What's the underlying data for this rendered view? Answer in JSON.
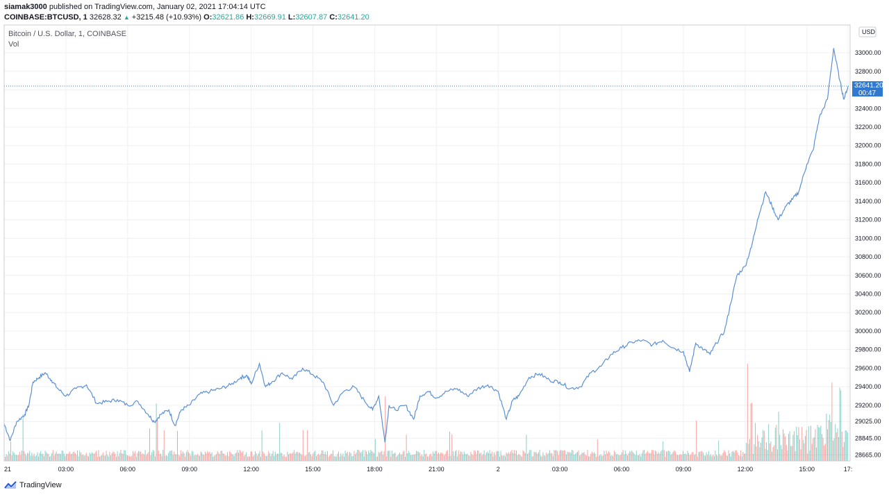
{
  "header": {
    "author": "siamak3000",
    "published": "published on TradingView.com, January 02, 2021 17:04:14 UTC",
    "symbol": "COINBASE:BTCUSD, 1",
    "last": "32628.32",
    "change": "+3215.48 (+10.93%)",
    "o_label": "O:",
    "o_value": "32621.86",
    "h_label": "H:",
    "h_value": "32669.91",
    "l_label": "L:",
    "l_value": "32607.87",
    "c_label": "C:",
    "c_value": "32641.20"
  },
  "legend": {
    "title": "Bitcoin / U.S. Dollar, 1, COINBASE",
    "volume": "Vol"
  },
  "price_axis": {
    "currency": "USD",
    "last_price_label": "32641.20",
    "countdown": "00:47"
  },
  "footer": {
    "brand": "TradingView"
  },
  "colors": {
    "line": "#5b8fd6",
    "vol_up": "#26a69a",
    "vol_down": "#ef5350",
    "price_tag": "#3179d0",
    "grid": "#eef0f3"
  },
  "chart_data": {
    "type": "line",
    "title": "Bitcoin / U.S. Dollar, 1, COINBASE",
    "ylim": [
      28600,
      33300
    ],
    "yticks": [
      28665,
      28845,
      29025,
      29200,
      29400,
      29600,
      29800,
      30000,
      30200,
      30400,
      30600,
      30800,
      31000,
      31200,
      31400,
      31600,
      31800,
      32000,
      32200,
      32400,
      32600,
      32800,
      33000
    ],
    "ytick_labels": [
      "28665.00",
      "28845.00",
      "29025.00",
      "29200.00",
      "29400.00",
      "29600.00",
      "29800.00",
      "30000.00",
      "30200.00",
      "30400.00",
      "30600.00",
      "30800.00",
      "31000.00",
      "31200.00",
      "31400.00",
      "31600.00",
      "31800.00",
      "32000.00",
      "32200.00",
      "32400.00",
      "32600.00",
      "32800.00",
      "33000.00"
    ],
    "xlim_hours": [
      0,
      41.1
    ],
    "xticks_hours": [
      0,
      3,
      6,
      9,
      12,
      15,
      18,
      21,
      24,
      27,
      30,
      33,
      36,
      39,
      41
    ],
    "xtick_labels": [
      "21",
      "03:00",
      "06:00",
      "09:00",
      "12:00",
      "15:00",
      "18:00",
      "21:00",
      "2",
      "03:00",
      "06:00",
      "09:00",
      "12:00",
      "15:00",
      "17:"
    ],
    "series": [
      {
        "x": [
          0,
          0.3,
          0.6,
          1.0,
          1.2,
          1.4,
          1.7,
          2.0,
          2.3,
          2.6,
          3.0,
          3.5,
          4.0,
          4.5,
          5.0,
          5.5,
          6.0,
          6.5,
          7.0,
          7.3,
          7.6,
          8.0,
          8.3,
          8.6,
          9.0,
          9.5,
          10.0,
          10.5,
          11.0,
          11.5,
          11.8,
          12.0,
          12.4,
          12.7,
          13.0,
          13.5,
          14.0,
          14.5,
          15.0,
          15.5,
          16.0,
          16.5,
          17.0,
          17.5,
          17.9,
          18.2,
          18.5,
          18.7,
          19.0,
          19.5,
          19.9,
          20.2,
          20.6,
          21.0,
          21.5,
          22.0,
          22.5,
          23.0,
          23.5,
          24.0,
          24.4,
          24.7,
          25.0,
          25.5,
          26.0,
          26.5,
          27.0,
          27.5,
          28.0,
          28.5,
          29.0,
          29.5,
          30.0,
          30.5,
          31.0,
          31.5,
          32.0,
          32.5,
          33.0,
          33.3,
          33.6,
          34.0,
          34.3,
          34.6,
          35.0,
          35.3,
          35.6,
          36.0,
          36.3,
          36.6,
          37.0,
          37.3,
          37.6,
          38.0,
          38.3,
          38.6,
          39.0,
          39.3,
          39.6,
          40.0,
          40.3,
          40.6,
          40.8,
          41.0
        ],
        "y": [
          29000,
          28820,
          29020,
          29100,
          29200,
          29450,
          29500,
          29550,
          29470,
          29380,
          29300,
          29380,
          29420,
          29220,
          29240,
          29260,
          29200,
          29240,
          29100,
          29020,
          29100,
          29150,
          28980,
          29150,
          29200,
          29320,
          29350,
          29380,
          29420,
          29500,
          29520,
          29430,
          29650,
          29400,
          29450,
          29550,
          29480,
          29600,
          29530,
          29450,
          29200,
          29350,
          29400,
          29250,
          29150,
          29300,
          28800,
          29200,
          29150,
          29200,
          29050,
          29300,
          29350,
          29280,
          29350,
          29380,
          29300,
          29380,
          29420,
          29350,
          29050,
          29250,
          29300,
          29500,
          29540,
          29470,
          29450,
          29380,
          29400,
          29550,
          29620,
          29750,
          29820,
          29880,
          29900,
          29850,
          29900,
          29820,
          29780,
          29560,
          29870,
          29800,
          29750,
          29870,
          30000,
          30300,
          30600,
          30700,
          30900,
          31200,
          31500,
          31350,
          31200,
          31350,
          31420,
          31500,
          31800,
          31950,
          32300,
          32500,
          33050,
          32700,
          32500,
          32641
        ]
      }
    ],
    "volume": {
      "note": "bars along the bottom band, larger spikes near 12:00-17:00 on day 2",
      "spikes_hours": [
        0.9,
        7.4,
        18.5,
        36.1,
        36.3,
        40.2,
        40.6
      ]
    }
  }
}
